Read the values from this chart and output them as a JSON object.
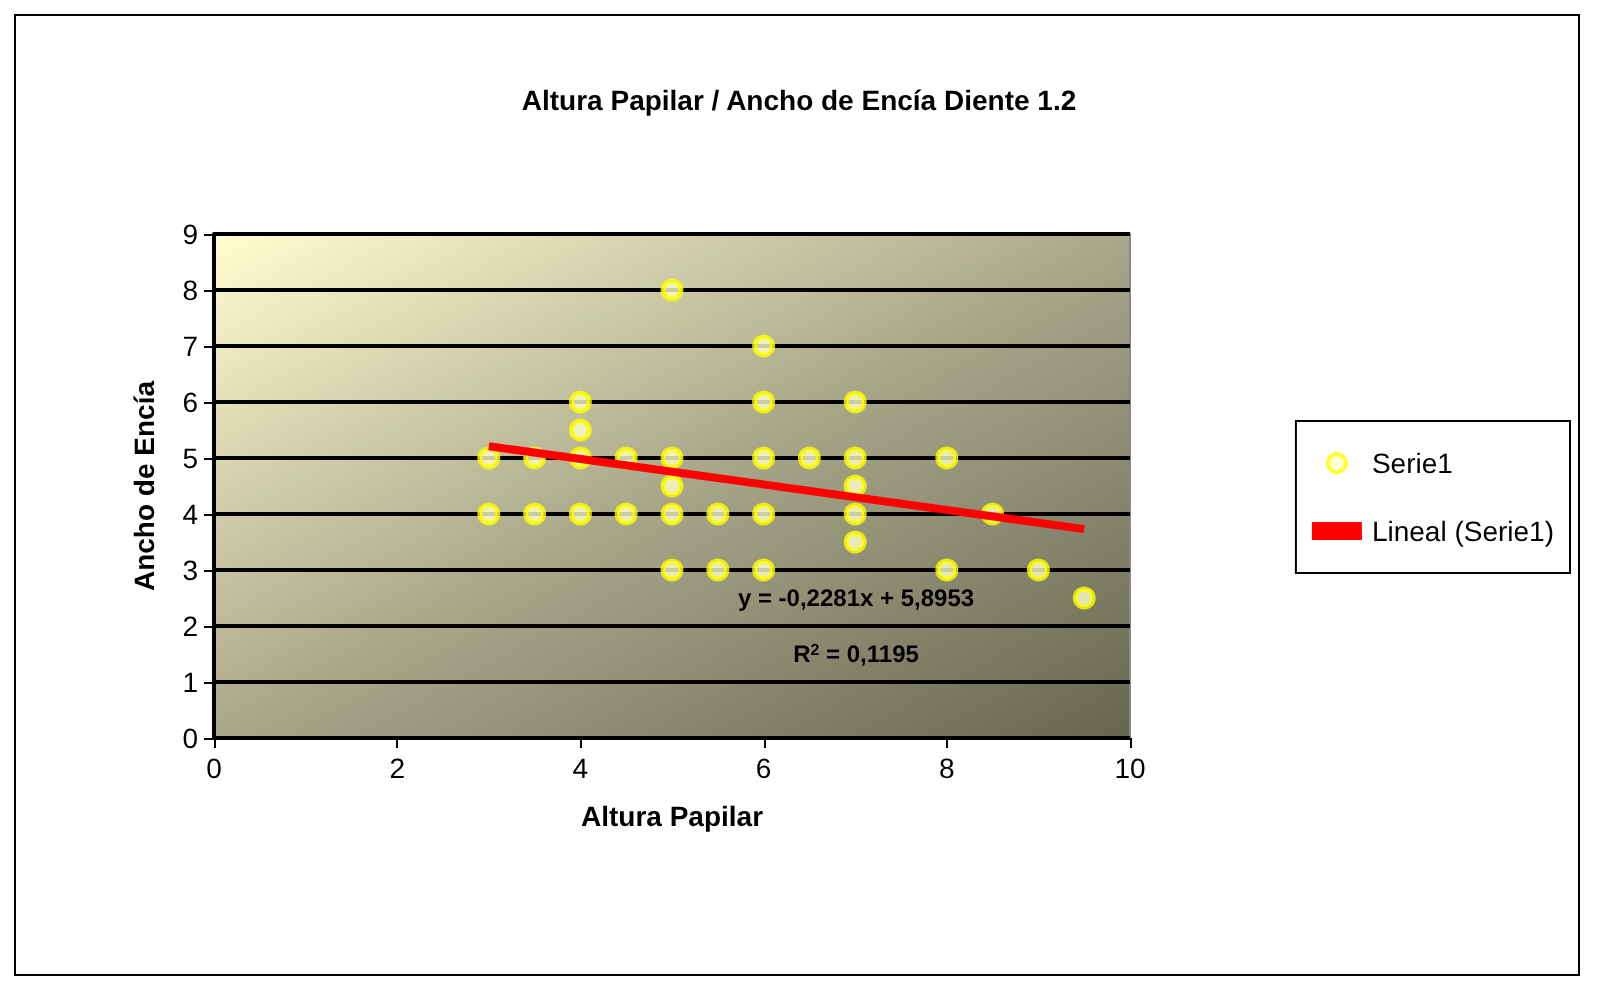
{
  "chart_data": {
    "type": "scatter",
    "title": "Altura Papilar / Ancho de Encía Diente 1.2",
    "xlabel": "Altura Papilar",
    "ylabel": "Ancho de Encía",
    "xlim": [
      0,
      10
    ],
    "xticks": [
      0,
      2,
      4,
      6,
      8,
      10
    ],
    "ylim": [
      0,
      9
    ],
    "yticks": [
      0,
      1,
      2,
      3,
      4,
      5,
      6,
      7,
      8,
      9
    ],
    "grid": "y",
    "legend": "right",
    "annotations": [
      "y = -0,2281x + 5,8953",
      "R$^{2}$ = 0,1195"
    ],
    "series": [
      {
        "name": "Serie1",
        "type": "scatter",
        "marker": "circle",
        "color": "#ffff00",
        "x": [
          3,
          3,
          3.5,
          3.5,
          4,
          4,
          4,
          4,
          4.5,
          4.5,
          5,
          5,
          5,
          5,
          5,
          5.5,
          5.5,
          6,
          6,
          6,
          6,
          6,
          6.5,
          7,
          7,
          7,
          7,
          7,
          8,
          8,
          8.5,
          9,
          9.5
        ],
        "values": [
          5,
          4,
          5,
          4,
          6,
          5.5,
          5,
          4,
          5,
          4,
          8,
          5,
          4.5,
          4,
          3,
          4,
          3,
          7,
          6,
          5,
          4,
          3,
          5,
          6,
          5,
          4.5,
          4,
          3.5,
          5,
          3,
          4,
          3,
          2.5
        ]
      },
      {
        "name": "Lineal (Serie1)",
        "type": "line",
        "marker": "none",
        "color": "#ff0000",
        "x": [
          3,
          9.5
        ],
        "values": [
          5.21,
          3.73
        ]
      }
    ]
  }
}
